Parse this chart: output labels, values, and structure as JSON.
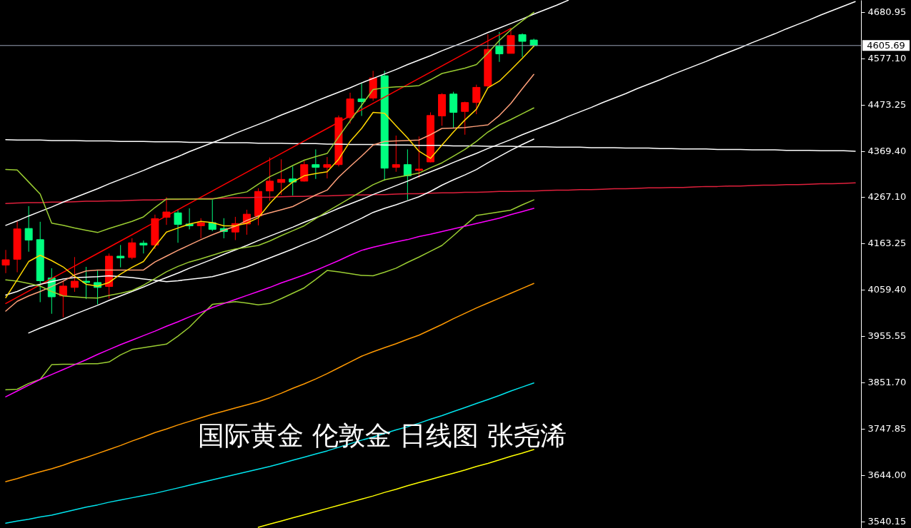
{
  "chart_data": {
    "type": "candlestick",
    "title": "国际黄金 伦敦金 日线图 张尧浠",
    "categories": [
      null,
      null,
      null,
      null,
      null,
      null,
      null,
      null,
      null,
      null,
      null,
      null,
      null,
      null,
      null,
      null,
      null,
      null,
      null,
      null,
      null,
      null,
      null,
      null,
      null,
      null,
      null,
      null,
      null,
      null,
      null,
      null,
      null,
      null,
      null,
      null,
      null,
      null,
      null,
      null,
      null,
      null,
      null,
      null,
      null,
      null,
      null,
      null,
      null,
      null,
      null,
      null,
      null,
      null,
      null,
      null,
      null,
      null,
      null,
      null,
      null,
      null,
      null,
      null,
      null,
      null,
      null,
      null,
      null,
      null,
      null,
      null,
      null,
      null,
      null
    ],
    "ohlc": [
      [
        4114,
        4148,
        4096,
        4126
      ],
      [
        4127,
        4212,
        4098,
        4195
      ],
      [
        4196,
        4246,
        4144,
        4170
      ],
      [
        4171,
        4211,
        4031,
        4079
      ],
      [
        4085,
        4107,
        4005,
        4043
      ],
      [
        4045,
        4080,
        3997,
        4067
      ],
      [
        4064,
        4132,
        4054,
        4078
      ],
      [
        4078,
        4110,
        4038,
        4075
      ],
      [
        4075,
        4102,
        4026,
        4064
      ],
      [
        4066,
        4140,
        4039,
        4134
      ],
      [
        4134,
        4159,
        4109,
        4130
      ],
      [
        4131,
        4174,
        4127,
        4164
      ],
      [
        4163,
        4169,
        4140,
        4159
      ],
      [
        4159,
        4227,
        4150,
        4218
      ],
      [
        4221,
        4266,
        4204,
        4233
      ],
      [
        4231,
        4239,
        4164,
        4205
      ],
      [
        4206,
        4241,
        4194,
        4202
      ],
      [
        4202,
        4219,
        4174,
        4209
      ],
      [
        4209,
        4260,
        4190,
        4194
      ],
      [
        4196,
        4219,
        4174,
        4189
      ],
      [
        4188,
        4222,
        4170,
        4207
      ],
      [
        4206,
        4238,
        4182,
        4228
      ],
      [
        4224,
        4286,
        4203,
        4279
      ],
      [
        4280,
        4355,
        4258,
        4302
      ],
      [
        4299,
        4351,
        4271,
        4306
      ],
      [
        4307,
        4335,
        4270,
        4300
      ],
      [
        4302,
        4348,
        4301,
        4339
      ],
      [
        4339,
        4373,
        4307,
        4333
      ],
      [
        4333,
        4356,
        4308,
        4339
      ],
      [
        4339,
        4449,
        4335,
        4444
      ],
      [
        4444,
        4500,
        4431,
        4486
      ],
      [
        4486,
        4522,
        4448,
        4480
      ],
      [
        4488,
        4549,
        4482,
        4533
      ],
      [
        4538,
        4549,
        4303,
        4331
      ],
      [
        4333,
        4404,
        4323,
        4339
      ],
      [
        4339,
        4373,
        4260,
        4314
      ],
      [
        4326,
        4402,
        4309,
        4329
      ],
      [
        4345,
        4456,
        4344,
        4449
      ],
      [
        4448,
        4499,
        4426,
        4496
      ],
      [
        4497,
        4502,
        4421,
        4456
      ],
      [
        4458,
        4480,
        4406,
        4478
      ],
      [
        4478,
        4518,
        4452,
        4512
      ],
      [
        4515,
        4631,
        4511,
        4597
      ],
      [
        4604,
        4636,
        4569,
        4587
      ],
      [
        4588,
        4644,
        4588,
        4628
      ],
      [
        4630,
        4633,
        4580,
        4615
      ],
      [
        4618,
        4621,
        4602,
        4605.69
      ],
      null,
      null,
      null,
      null,
      null,
      null,
      null,
      null,
      null,
      null,
      null,
      null,
      null,
      null,
      null,
      null,
      null,
      null,
      null,
      null,
      null,
      null,
      null,
      null,
      null,
      null,
      null,
      null
    ],
    "colors": [
      "#ff0000",
      "#ff0000",
      "#00ff7f",
      "#00ff7f",
      "#00ff7f",
      "#ff0000",
      "#ff0000",
      "#00ff7f",
      "#00ff7f",
      "#ff0000",
      "#00ff7f",
      "#ff0000",
      "#00ff7f",
      "#ff0000",
      "#ff0000",
      "#00ff7f",
      "#00ff7f",
      "#ff0000",
      "#00ff7f",
      "#00ff7f",
      "#ff0000",
      "#ff0000",
      "#ff0000",
      "#ff0000",
      "#ff0000",
      "#00ff7f",
      "#ff0000",
      "#00ff7f",
      "#ff0000",
      "#ff0000",
      "#ff0000",
      "#00ff7f",
      "#ff0000",
      "#00ff7f",
      "#ff0000",
      "#00ff7f",
      "#ff0000",
      "#ff0000",
      "#ff0000",
      "#00ff7f",
      "#ff0000",
      "#ff0000",
      "#ff0000",
      "#00ff7f",
      "#ff0000",
      "#00ff7f",
      "#00ff7f",
      null,
      null,
      null,
      null,
      null,
      null,
      null,
      null,
      null,
      null,
      null,
      null,
      null,
      null,
      null,
      null,
      null,
      null,
      null,
      null,
      null,
      null,
      null,
      null,
      null,
      null,
      null,
      null
    ],
    "series": [
      {
        "type": "line",
        "color": "#ffffff",
        "values": [
          4395,
          4394,
          4394,
          4394,
          4393,
          4393,
          4393,
          4392,
          4392,
          4392,
          4391,
          4391,
          4391,
          4390,
          4390,
          4390,
          4389,
          4389,
          4389,
          4388,
          4388,
          4388,
          4387,
          4387,
          4387,
          4386,
          4386,
          4386,
          4385,
          4385,
          4384,
          4384,
          4384,
          4383,
          4383,
          4383,
          4382,
          4382,
          4382,
          4381,
          4381,
          4381,
          4380,
          4380,
          4380,
          4379,
          4379,
          4379,
          4378,
          4378,
          4378,
          4377,
          4377,
          4377,
          4376,
          4376,
          4376,
          4375,
          4375,
          4374,
          4374,
          4374,
          4373,
          4373,
          4373,
          4372,
          4372,
          4372,
          4371,
          4371,
          4371,
          4370,
          4370,
          4370,
          4369
        ]
      },
      {
        "type": "line",
        "color": "#e0203c",
        "values": [
          4252,
          4253,
          4254,
          4254,
          4255,
          4255,
          4256,
          4257,
          4257,
          4258,
          4258,
          4259,
          4260,
          4260,
          4261,
          4261,
          4262,
          4263,
          4263,
          4264,
          4265,
          4265,
          4266,
          4266,
          4267,
          4268,
          4268,
          4269,
          4269,
          4270,
          4271,
          4271,
          4272,
          4272,
          4273,
          4274,
          4274,
          4275,
          4276,
          4276,
          4277,
          4277,
          4278,
          4279,
          4279,
          4280,
          4280,
          4281,
          4282,
          4282,
          4283,
          4283,
          4284,
          4285,
          4285,
          4286,
          4287,
          4287,
          4288,
          4288,
          4289,
          4290,
          4290,
          4291,
          4291,
          4292,
          4293,
          4293,
          4294,
          4294,
          4295,
          4296,
          4296,
          4297,
          4298
        ]
      },
      {
        "type": "line",
        "color": "#ffffff",
        "values": [
          4203,
          4213,
          4224,
          4234,
          4244,
          4255,
          4265,
          4275,
          4285,
          4296,
          4306,
          4316,
          4326,
          4337,
          4347,
          4357,
          4368,
          4378,
          4388,
          4398,
          4409,
          4419,
          4429,
          4439,
          4450,
          4460,
          4470,
          4481,
          4491,
          4501,
          4511,
          4522,
          4532,
          4542,
          4552,
          4563,
          4573,
          4583,
          4594,
          4604,
          4614,
          4624,
          4635,
          4645,
          4655,
          4665,
          4676,
          4686,
          4696,
          4707,
          null,
          null,
          null,
          null,
          null,
          null,
          null,
          null,
          null,
          null,
          null,
          null,
          null,
          null,
          null,
          null,
          null,
          null,
          null,
          null,
          null,
          null,
          null,
          null,
          null
        ]
      },
      {
        "type": "line",
        "color": "#ffffff",
        "values": [
          null,
          null,
          3962,
          3973,
          3983,
          3993,
          4004,
          4014,
          4024,
          4035,
          4045,
          4055,
          4065,
          4076,
          4086,
          4096,
          4107,
          4117,
          4127,
          4138,
          4148,
          4158,
          4169,
          4179,
          4189,
          4199,
          4210,
          4220,
          4230,
          4241,
          4251,
          4261,
          4272,
          4282,
          4292,
          4302,
          4313,
          4323,
          4333,
          4344,
          4354,
          4364,
          4375,
          4385,
          4395,
          4406,
          4416,
          4426,
          4436,
          4447,
          4457,
          4467,
          4478,
          4488,
          4498,
          4509,
          4519,
          4529,
          4540,
          4550,
          4560,
          4570,
          4581,
          4591,
          4601,
          4612,
          4622,
          4632,
          4643,
          4653,
          4663,
          4674,
          4684,
          4694,
          4704
        ]
      },
      {
        "type": "line",
        "color": "#ff0000",
        "values": [
          4028,
          4042,
          4056,
          4070,
          4084,
          4098,
          4112,
          4126,
          4140,
          4154,
          4168,
          4182,
          4196,
          4210,
          4224,
          4238,
          4252,
          4266,
          4280,
          4294,
          4308,
          4322,
          4336,
          4350,
          4364,
          4378,
          4392,
          4406,
          4420,
          4434,
          4448,
          4462,
          4476,
          4490,
          4504,
          4518,
          4532,
          4546,
          4560,
          4574,
          4588,
          4602,
          4616,
          4630,
          4644,
          null,
          null,
          null,
          null,
          null,
          null,
          null,
          null,
          null,
          null,
          null,
          null,
          null,
          null,
          null,
          null,
          null,
          null,
          null,
          null,
          null,
          null,
          null,
          null,
          null,
          null,
          null,
          null,
          null,
          null
        ]
      },
      {
        "type": "line",
        "color": "#ffff00",
        "values": [
          null,
          null,
          null,
          null,
          null,
          null,
          null,
          null,
          null,
          null,
          null,
          null,
          null,
          null,
          null,
          null,
          null,
          null,
          null,
          null,
          null,
          null,
          3527,
          3534,
          3541,
          3548,
          3555,
          3562,
          3569,
          3576,
          3583,
          3590,
          3597,
          3605,
          3612,
          3620,
          3627,
          3634,
          3641,
          3648,
          3655,
          3663,
          3670,
          3678,
          3686,
          3693,
          3701,
          null,
          null,
          null,
          null,
          null,
          null,
          null,
          null,
          null,
          null,
          null,
          null,
          null,
          null,
          null,
          null,
          null,
          null,
          null,
          null,
          null,
          null,
          null,
          null,
          null,
          null,
          null,
          null
        ]
      },
      {
        "type": "line",
        "color": "#00e5ee",
        "values": [
          3536,
          3541,
          3545,
          3550,
          3554,
          3560,
          3566,
          3572,
          3577,
          3583,
          3588,
          3593,
          3598,
          3603,
          3609,
          3615,
          3621,
          3627,
          3633,
          3639,
          3645,
          3651,
          3657,
          3663,
          3670,
          3677,
          3684,
          3691,
          3698,
          3706,
          3714,
          3722,
          3729,
          3737,
          3745,
          3752,
          3760,
          3769,
          3777,
          3786,
          3795,
          3804,
          3813,
          3822,
          3832,
          3841,
          3850,
          null,
          null,
          null,
          null,
          null,
          null,
          null,
          null,
          null,
          null,
          null,
          null,
          null,
          null,
          null,
          null,
          null,
          null,
          null,
          null,
          null,
          null,
          null,
          null,
          null,
          null,
          null,
          null
        ]
      },
      {
        "type": "line",
        "color": "#ff9900",
        "values": [
          3629,
          3636,
          3644,
          3651,
          3658,
          3666,
          3675,
          3683,
          3692,
          3701,
          3710,
          3720,
          3729,
          3739,
          3747,
          3756,
          3764,
          3772,
          3780,
          3787,
          3794,
          3801,
          3808,
          3817,
          3827,
          3838,
          3848,
          3859,
          3871,
          3884,
          3897,
          3910,
          3920,
          3929,
          3938,
          3948,
          3957,
          3969,
          3981,
          3994,
          4006,
          4018,
          4029,
          4040,
          4051,
          4062,
          4073,
          null,
          null,
          null,
          null,
          null,
          null,
          null,
          null,
          null,
          null,
          null,
          null,
          null,
          null,
          null,
          null,
          null,
          null,
          null,
          null,
          null,
          null,
          null,
          null,
          null,
          null,
          null,
          null
        ]
      },
      {
        "type": "line",
        "color": "#9acd32",
        "values": [
          3835,
          3836,
          3849,
          3858,
          3891,
          3892,
          3892,
          3893,
          3893,
          3897,
          3913,
          3925,
          3929,
          3933,
          3937,
          3955,
          3975,
          4001,
          4026,
          4029,
          4032,
          4029,
          4025,
          4028,
          4039,
          4051,
          4063,
          4082,
          4102,
          4099,
          4095,
          4091,
          4090,
          4098,
          4107,
          4120,
          4132,
          4145,
          4158,
          4180,
          4203,
          4225,
          4229,
          4233,
          4237,
          4249,
          4260,
          null,
          null,
          null,
          null,
          null,
          null,
          null,
          null,
          null,
          null,
          null,
          null,
          null,
          null,
          null,
          null,
          null,
          null,
          null,
          null,
          null,
          null,
          null,
          null,
          null,
          null,
          null,
          null
        ]
      },
      {
        "type": "line",
        "color": "#ff00ff",
        "values": [
          3819,
          3832,
          3845,
          3858,
          3869,
          3880,
          3891,
          3902,
          3914,
          3925,
          3936,
          3946,
          3956,
          3966,
          3977,
          3987,
          3998,
          4008,
          4019,
          4028,
          4037,
          4046,
          4055,
          4064,
          4074,
          4083,
          4092,
          4102,
          4113,
          4124,
          4136,
          4147,
          4154,
          4160,
          4166,
          4171,
          4178,
          4183,
          4189,
          4195,
          4201,
          4207,
          4213,
          4219,
          4227,
          4234,
          4241,
          null,
          null,
          null,
          null,
          null,
          null,
          null,
          null,
          null,
          null,
          null,
          null,
          null,
          null,
          null,
          null,
          null,
          null,
          null,
          null,
          null,
          null,
          null,
          null,
          null,
          null,
          null,
          null
        ]
      },
      {
        "type": "line",
        "color": "#ffffff",
        "values": [
          4047,
          4055,
          4066,
          4071,
          4077,
          4083,
          4086,
          4087,
          4088,
          4090,
          4088,
          4086,
          4083,
          4080,
          4077,
          4079,
          4082,
          4085,
          4088,
          4095,
          4102,
          4110,
          4120,
          4130,
          4140,
          4150,
          4161,
          4171,
          4183,
          4195,
          4207,
          4219,
          4232,
          4241,
          4249,
          4258,
          4267,
          4279,
          4293,
          4305,
          4316,
          4328,
          4343,
          4357,
          4371,
          4384,
          4396,
          null,
          null,
          null,
          null,
          null,
          null,
          null,
          null,
          null,
          null,
          null,
          null,
          null,
          null,
          null,
          null,
          null,
          null,
          null,
          null,
          null,
          null,
          null,
          null,
          null,
          null,
          null,
          null
        ]
      },
      {
        "type": "line",
        "color": "#ffa07a",
        "values": [
          4011,
          4033,
          4045,
          4055,
          4066,
          4078,
          4092,
          4101,
          4103,
          4103,
          4103,
          4103,
          4103,
          4121,
          4134,
          4147,
          4159,
          4171,
          4182,
          4192,
          4201,
          4214,
          4224,
          4231,
          4238,
          4245,
          4258,
          4271,
          4282,
          4311,
          4335,
          4358,
          4383,
          4391,
          4392,
          4393,
          4394,
          4406,
          4420,
          4421,
          4422,
          4425,
          4428,
          4449,
          4476,
          4509,
          4541,
          null,
          null,
          null,
          null,
          null,
          null,
          null,
          null,
          null,
          null,
          null,
          null,
          null,
          null,
          null,
          null,
          null,
          null,
          null,
          null,
          null,
          null,
          null,
          null,
          null,
          null,
          null,
          null
        ]
      },
      {
        "type": "line",
        "color": "#9acd32",
        "values": [
          4081,
          4078,
          4073,
          4067,
          4055,
          4045,
          4043,
          4041,
          4040,
          4046,
          4051,
          4057,
          4069,
          4084,
          4099,
          4111,
          4121,
          4128,
          4136,
          4144,
          4150,
          4154,
          4158,
          4168,
          4180,
          4191,
          4202,
          4218,
          4234,
          4249,
          4264,
          4279,
          4294,
          4305,
          4310,
          4315,
          4320,
          4332,
          4343,
          4358,
          4373,
          4391,
          4412,
          4428,
          4440,
          4453,
          4466,
          null,
          null,
          null,
          null,
          null,
          null,
          null,
          null,
          null,
          null,
          null,
          null,
          null,
          null,
          null,
          null,
          null,
          null,
          null,
          null,
          null,
          null,
          null,
          null,
          null,
          null,
          null,
          null
        ]
      },
      {
        "type": "line",
        "color": "#9acd32",
        "values": [
          4328,
          4327,
          4300,
          4273,
          4208,
          4203,
          4197,
          4192,
          4187,
          4196,
          4204,
          4212,
          4222,
          4243,
          4262,
          4262,
          4262,
          4262,
          4262,
          4267,
          4273,
          4278,
          4295,
          4312,
          4324,
          4337,
          4349,
          4357,
          4364,
          4401,
          4437,
          4472,
          4507,
          4511,
          4513,
          4514,
          4516,
          4529,
          4543,
          4549,
          4555,
          4563,
          4589,
          4617,
          4641,
          4661,
          4680,
          null,
          null,
          null,
          null,
          null,
          null,
          null,
          null,
          null,
          null,
          null,
          null,
          null,
          null,
          null,
          null,
          null,
          null,
          null,
          null,
          null,
          null,
          null,
          null,
          null,
          null,
          null,
          null
        ]
      },
      {
        "type": "line",
        "color": "#ffd700",
        "values": [
          4041,
          4081,
          4122,
          4136,
          4124,
          4110,
          4089,
          4071,
          4067,
          4075,
          4094,
          4109,
          4122,
          4156,
          4188,
          4197,
          4206,
          4212,
          4209,
          4202,
          4202,
          4208,
          4220,
          4252,
          4279,
          4300,
          4314,
          4319,
          4323,
          4351,
          4391,
          4420,
          4456,
          4454,
          4426,
          4399,
          4369,
          4353,
          4383,
          4412,
          4439,
          4463,
          4511,
          4526,
          4551,
          4577,
          4604,
          null,
          null,
          null,
          null,
          null,
          null,
          null,
          null,
          null,
          null,
          null,
          null,
          null,
          null,
          null,
          null,
          null,
          null,
          null,
          null,
          null,
          null,
          null,
          null,
          null,
          null,
          null,
          null
        ]
      }
    ],
    "ref_lines": [
      {
        "axis": "y",
        "value": 4605.69,
        "label": "4605.69",
        "color": "#9aa3b5"
      }
    ],
    "ylim": [
      3525.3,
      4707.6
    ],
    "yticks": [
      4680.95,
      {
        "value": 4577.1,
        "label": "4577.10"
      },
      4473.25,
      {
        "value": 4369.4,
        "label": "4369.40"
      },
      {
        "value": 4267.1,
        "label": "4267.10"
      },
      4163.25,
      {
        "value": 4059.4,
        "label": "4059.40"
      },
      3955.55,
      {
        "value": 3851.7,
        "label": "3851.70"
      },
      3747.85,
      {
        "value": 3644,
        "label": "3644.00"
      },
      3540.15
    ]
  }
}
